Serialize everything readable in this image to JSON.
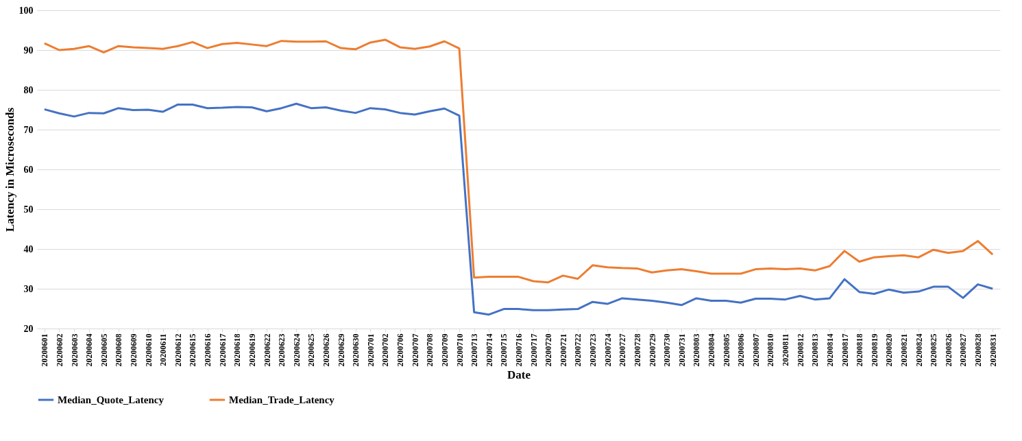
{
  "chart_data": {
    "type": "line",
    "xlabel": "Date",
    "ylabel": "Latency in Microseconds",
    "categories": [
      "20200601",
      "20200602",
      "20200603",
      "20200604",
      "20200605",
      "20200608",
      "20200609",
      "20200610",
      "20200611",
      "20200612",
      "20200615",
      "20200616",
      "20200617",
      "20200618",
      "20200619",
      "20200622",
      "20200623",
      "20200624",
      "20200625",
      "20200626",
      "20200629",
      "20200630",
      "20200701",
      "20200702",
      "20200706",
      "20200707",
      "20200708",
      "20200709",
      "20200710",
      "20200713",
      "20200714",
      "20200715",
      "20200716",
      "20200717",
      "20200720",
      "20200721",
      "20200722",
      "20200723",
      "20200724",
      "20200727",
      "20200728",
      "20200729",
      "20200730",
      "20200731",
      "20200803",
      "20200804",
      "20200805",
      "20200806",
      "20200807",
      "20200810",
      "20200811",
      "20200812",
      "20200813",
      "20200814",
      "20200817",
      "20200818",
      "20200819",
      "20200820",
      "20200821",
      "20200824",
      "20200825",
      "20200826",
      "20200827",
      "20200828",
      "20200831"
    ],
    "series": [
      {
        "name": "Median_Quote_Latency",
        "color": "#4472c4",
        "values": [
          75.1,
          74.1,
          73.3,
          74.2,
          74.1,
          75.4,
          74.9,
          75.0,
          74.5,
          76.3,
          76.3,
          75.4,
          75.5,
          75.7,
          75.6,
          74.6,
          75.4,
          76.5,
          75.4,
          75.6,
          74.8,
          74.2,
          75.4,
          75.1,
          74.2,
          73.8,
          74.6,
          75.3,
          73.5,
          24.1,
          23.5,
          24.9,
          24.9,
          24.6,
          24.6,
          24.8,
          24.9,
          26.7,
          26.2,
          27.6,
          27.3,
          27.0,
          26.5,
          25.9,
          27.6,
          27.0,
          27.0,
          26.5,
          27.5,
          27.5,
          27.3,
          28.2,
          27.3,
          27.6,
          32.4,
          29.2,
          28.7,
          29.8,
          29.0,
          29.3,
          30.5,
          30.5,
          27.7,
          31.1,
          30.0
        ]
      },
      {
        "name": "Median_Trade_Latency",
        "color": "#ed7d31",
        "values": [
          91.7,
          90.0,
          90.3,
          91.0,
          89.4,
          91.0,
          90.7,
          90.5,
          90.3,
          91.0,
          92.0,
          90.5,
          91.5,
          91.8,
          91.4,
          91.0,
          92.3,
          92.1,
          92.1,
          92.2,
          90.5,
          90.2,
          91.9,
          92.6,
          90.7,
          90.3,
          90.9,
          92.2,
          90.4,
          32.8,
          33.0,
          33.0,
          33.0,
          31.9,
          31.6,
          33.3,
          32.5,
          35.9,
          35.4,
          35.2,
          35.1,
          34.1,
          34.6,
          34.9,
          34.4,
          33.8,
          33.8,
          33.8,
          34.9,
          35.1,
          34.9,
          35.1,
          34.6,
          35.7,
          39.5,
          36.8,
          37.9,
          38.2,
          38.4,
          37.9,
          39.8,
          39.0,
          39.5,
          42.0,
          38.6
        ]
      }
    ],
    "ylim": [
      20,
      100
    ],
    "yticks": [
      20,
      30,
      40,
      50,
      60,
      70,
      80,
      90,
      100
    ],
    "grid": "y",
    "legend": "bottom",
    "marker": "none",
    "line_style": "solid"
  }
}
